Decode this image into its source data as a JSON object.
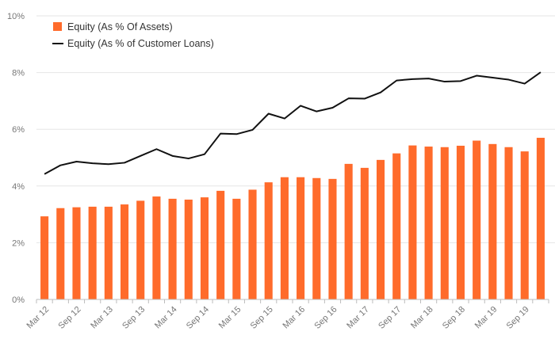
{
  "chart_data": {
    "type": "bar",
    "title": "",
    "xlabel": "",
    "ylabel": "",
    "ylim": [
      0,
      10
    ],
    "y_ticks": [
      "0%",
      "2%",
      "4%",
      "6%",
      "8%",
      "10%"
    ],
    "y_tick_values": [
      0,
      2,
      4,
      6,
      8,
      10
    ],
    "grid": true,
    "legend_position": "top-left",
    "categories": [
      "Mar 12",
      "Jun 12",
      "Sep 12",
      "Dec 12",
      "Mar 13",
      "Jun 13",
      "Sep 13",
      "Dec 13",
      "Mar 14",
      "Jun 14",
      "Sep 14",
      "Dec 14",
      "Mar 15",
      "Jun 15",
      "Sep 15",
      "Dec 15",
      "Mar 16",
      "Jun 16",
      "Sep 16",
      "Dec 16",
      "Mar 17",
      "Jun 17",
      "Sep 17",
      "Dec 17",
      "Mar 18",
      "Jun 18",
      "Sep 18",
      "Dec 18",
      "Mar 19",
      "Jun 19",
      "Sep 19",
      "Dec 19"
    ],
    "x_tick_labels": [
      "Mar 12",
      "Sep 12",
      "Mar 13",
      "Sep 13",
      "Mar 14",
      "Sep 14",
      "Mar 15",
      "Sep 15",
      "Mar 16",
      "Sep 16",
      "Mar 17",
      "Sep 17",
      "Mar 18",
      "Sep 18",
      "Mar 19",
      "Sep 19"
    ],
    "series": [
      {
        "name": "Equity (As % Of Assets)",
        "kind": "bar",
        "color": "#ff6b2b",
        "values": [
          2.93,
          3.22,
          3.25,
          3.27,
          3.27,
          3.35,
          3.48,
          3.63,
          3.55,
          3.52,
          3.6,
          3.83,
          3.55,
          3.87,
          4.13,
          4.31,
          4.31,
          4.28,
          4.25,
          4.78,
          4.64,
          4.92,
          5.15,
          5.43,
          5.39,
          5.37,
          5.42,
          5.6,
          5.48,
          5.37,
          5.22,
          5.7
        ]
      },
      {
        "name": "Equity (As % of Customer Loans)",
        "kind": "line",
        "color": "#111111",
        "values": [
          4.42,
          4.73,
          4.86,
          4.8,
          4.77,
          4.82,
          5.06,
          5.3,
          5.06,
          4.97,
          5.12,
          5.85,
          5.83,
          5.98,
          6.55,
          6.38,
          6.83,
          6.63,
          6.76,
          7.09,
          7.08,
          7.3,
          7.72,
          7.77,
          7.79,
          7.68,
          7.7,
          7.89,
          7.82,
          7.75,
          7.61,
          8.01
        ]
      }
    ]
  }
}
